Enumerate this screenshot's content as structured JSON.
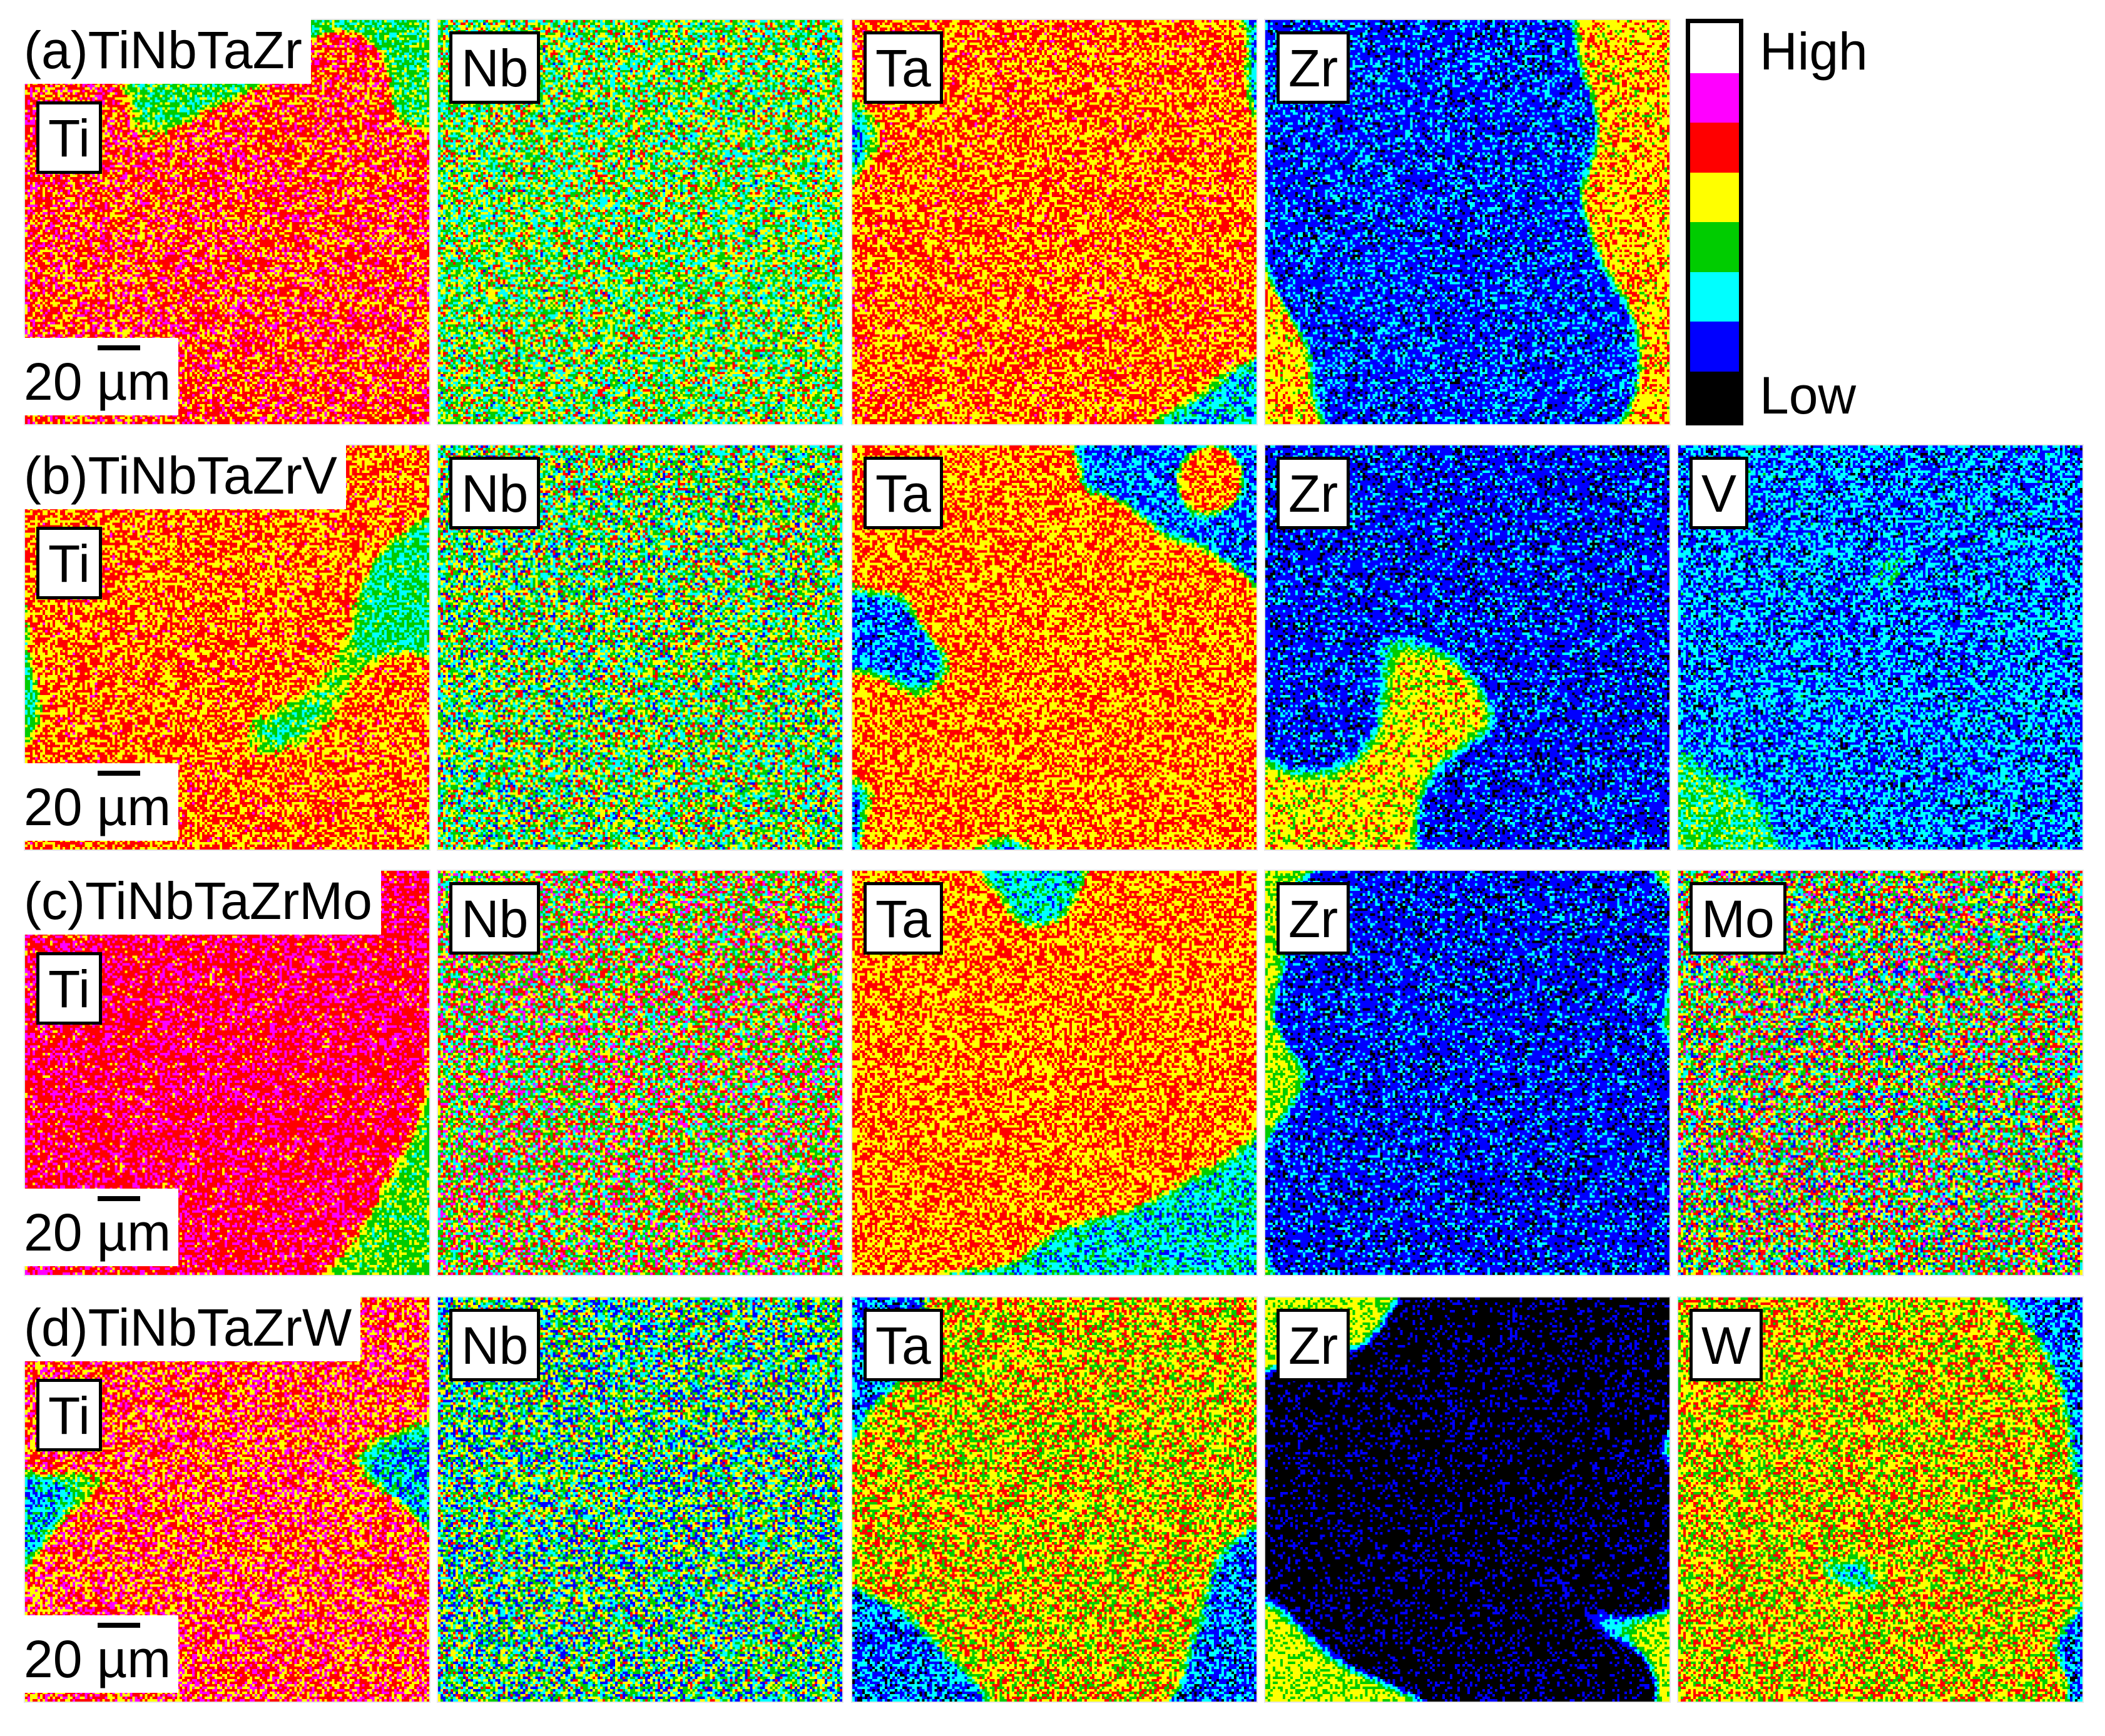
{
  "rows": [
    {
      "id": "a",
      "title": "(a)TiNbTaZr",
      "scale_label": "20 µm",
      "maps": [
        {
          "element": "Ti",
          "seed": 11,
          "pattern": "network",
          "bg": 2.9,
          "fg": 4.9,
          "noise": 0.3
        },
        {
          "element": "Nb",
          "seed": 12,
          "pattern": "uniform",
          "bg": 3.2,
          "fg": 3.2,
          "noise": 0.55
        },
        {
          "element": "Ta",
          "seed": 13,
          "pattern": "blobs",
          "bg": 1.9,
          "fg": 4.6,
          "noise": 0.3
        },
        {
          "element": "Zr",
          "seed": 14,
          "pattern": "blobs",
          "bg": 4.2,
          "fg": 1.1,
          "noise": 0.25
        }
      ]
    },
    {
      "id": "b",
      "title": "(b)TiNbTaZrV",
      "scale_label": "20 µm",
      "maps": [
        {
          "element": "Ti",
          "seed": 21,
          "pattern": "network",
          "bg": 2.6,
          "fg": 4.6,
          "noise": 0.3
        },
        {
          "element": "Nb",
          "seed": 22,
          "pattern": "uniform",
          "bg": 3.1,
          "fg": 3.1,
          "noise": 0.6
        },
        {
          "element": "Ta",
          "seed": 23,
          "pattern": "blobs",
          "bg": 1.3,
          "fg": 4.5,
          "noise": 0.3
        },
        {
          "element": "Zr",
          "seed": 24,
          "pattern": "blobs",
          "bg": 4.0,
          "fg": 1.0,
          "noise": 0.25
        },
        {
          "element": "V",
          "seed": 25,
          "pattern": "blobs",
          "bg": 2.8,
          "fg": 1.4,
          "noise": 0.35
        }
      ]
    },
    {
      "id": "c",
      "title": "(c)TiNbTaZrMo",
      "scale_label": "20 µm",
      "maps": [
        {
          "element": "Ti",
          "seed": 31,
          "pattern": "network",
          "bg": 3.1,
          "fg": 5.2,
          "noise": 0.25
        },
        {
          "element": "Nb",
          "seed": 32,
          "pattern": "uniform",
          "bg": 3.9,
          "fg": 3.9,
          "noise": 0.7
        },
        {
          "element": "Ta",
          "seed": 33,
          "pattern": "blobs",
          "bg": 2.1,
          "fg": 4.5,
          "noise": 0.3
        },
        {
          "element": "Zr",
          "seed": 34,
          "pattern": "blobs",
          "bg": 3.6,
          "fg": 1.0,
          "noise": 0.25
        },
        {
          "element": "Mo",
          "seed": 35,
          "pattern": "uniform",
          "bg": 3.4,
          "fg": 3.4,
          "noise": 0.75
        }
      ]
    },
    {
      "id": "d",
      "title": "(d)TiNbTaZrW",
      "scale_label": "20 µm",
      "maps": [
        {
          "element": "Ti",
          "seed": 41,
          "pattern": "network",
          "bg": 1.9,
          "fg": 4.9,
          "noise": 0.35
        },
        {
          "element": "Nb",
          "seed": 42,
          "pattern": "uniform",
          "bg": 2.7,
          "fg": 2.7,
          "noise": 0.65
        },
        {
          "element": "Ta",
          "seed": 43,
          "pattern": "blobs",
          "bg": 1.3,
          "fg": 4.0,
          "noise": 0.35
        },
        {
          "element": "Zr",
          "seed": 44,
          "pattern": "blobs",
          "bg": 3.7,
          "fg": 0.1,
          "noise": 0.2
        },
        {
          "element": "W",
          "seed": 45,
          "pattern": "blobs",
          "bg": 1.3,
          "fg": 4.0,
          "noise": 0.35
        }
      ]
    }
  ],
  "legend": {
    "high_label": "High",
    "low_label": "Low",
    "colors": [
      "#ffffff",
      "#ff00ff",
      "#ff0000",
      "#ffff00",
      "#00cc00",
      "#00ffff",
      "#0000ff",
      "#000000"
    ]
  },
  "colormap": [
    "#000000",
    "#0000ff",
    "#00ffff",
    "#00cc00",
    "#ffff00",
    "#ff0000",
    "#ff00ff",
    "#ffffff"
  ]
}
